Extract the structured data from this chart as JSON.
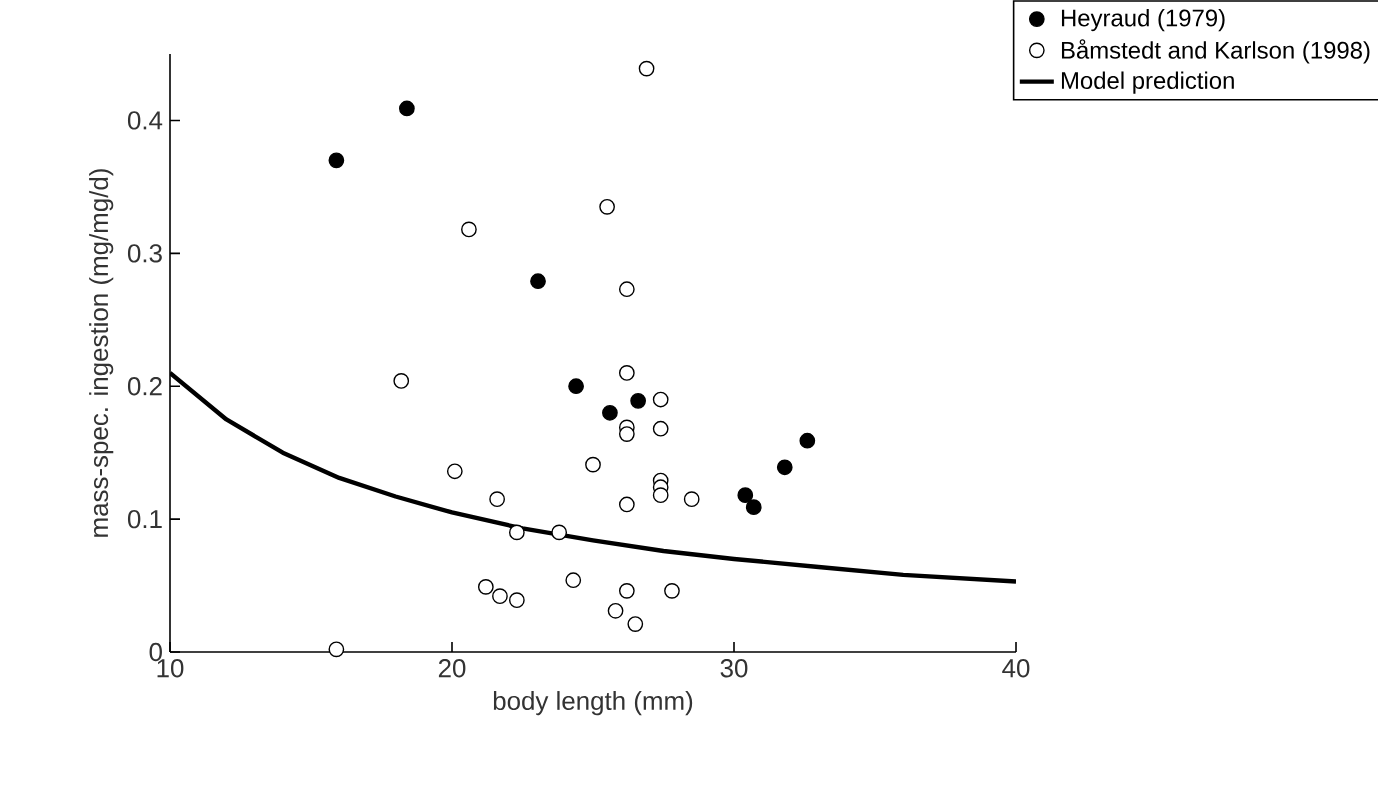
{
  "chart_data": {
    "type": "scatter",
    "xlabel": "body length (mm)",
    "ylabel": "mass-spec. ingestion (mg/mg/d)",
    "xlim": [
      10,
      40
    ],
    "ylim": [
      0,
      0.45
    ],
    "xticks": [
      10,
      20,
      30,
      40
    ],
    "yticks": [
      0,
      0.1,
      0.2,
      0.3,
      0.4
    ],
    "grid": false,
    "legend": "top right",
    "series": [
      {
        "name": "Heyraud (1979)",
        "color": "#000000",
        "marker": "circle",
        "x": [
          15.9,
          18.4,
          23.05,
          24.4,
          25.6,
          26.6,
          30.4,
          30.7,
          31.8,
          32.6
        ],
        "values": [
          0.37,
          0.409,
          0.279,
          0.2,
          0.18,
          0.189,
          0.118,
          0.109,
          0.139,
          0.159
        ]
      },
      {
        "name": "Båmstedt and Karlson (1998)",
        "color": "#ffffff",
        "marker": "circle",
        "x": [
          26.9,
          25.5,
          20.6,
          26.2,
          18.2,
          26.2,
          27.4,
          26.2,
          26.2,
          27.4,
          20.1,
          25.0,
          21.6,
          26.2,
          27.4,
          27.4,
          27.4,
          28.5,
          22.3,
          23.8,
          21.2,
          21.7,
          22.3,
          24.3,
          26.2,
          25.8,
          26.5,
          27.8,
          15.9
        ],
        "values": [
          0.439,
          0.335,
          0.318,
          0.273,
          0.204,
          0.21,
          0.19,
          0.169,
          0.164,
          0.168,
          0.136,
          0.141,
          0.115,
          0.111,
          0.129,
          0.124,
          0.118,
          0.115,
          0.09,
          0.09,
          0.049,
          0.042,
          0.039,
          0.054,
          0.046,
          0.031,
          0.021,
          0.046,
          0.002
        ]
      },
      {
        "name": "Model prediction",
        "type": "line",
        "marker": "none",
        "line_style": "solid",
        "color": "#000000",
        "x": [
          10,
          12,
          14,
          16,
          18,
          20,
          22.5,
          25,
          27.5,
          30,
          33,
          36,
          40
        ],
        "values": [
          0.21,
          0.175,
          0.15,
          0.131,
          0.117,
          0.105,
          0.093,
          0.084,
          0.076,
          0.07,
          0.064,
          0.058,
          0.053
        ]
      }
    ]
  }
}
